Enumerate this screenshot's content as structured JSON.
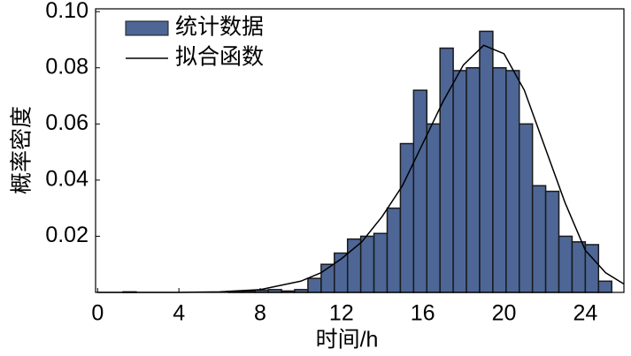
{
  "chart_data": {
    "type": "histogram",
    "x_label": "时间/h",
    "y_label": "概率密度",
    "bins": [
      0.6,
      1.25,
      1.9,
      2.55,
      3.2,
      3.85,
      4.5,
      5.15,
      5.8,
      6.45,
      7.1,
      7.75,
      8.4,
      9.05,
      9.7,
      10.35,
      11.0,
      11.65,
      12.3,
      12.95,
      13.6,
      14.25,
      14.9,
      15.55,
      16.2,
      16.85,
      17.5,
      18.15,
      18.8,
      19.45,
      20.1,
      20.75,
      21.4,
      22.05,
      22.7,
      23.35,
      24.0,
      24.65,
      25.3
    ],
    "series": [
      {
        "name": "统计数据",
        "type": "histogram",
        "color": "#4d6696",
        "values": [
          0,
          0.0002,
          0,
          0,
          0,
          0,
          0,
          0,
          0,
          0.0002,
          0.0005,
          0.0008,
          0.001,
          0.0005,
          0.001,
          0.005,
          0.01,
          0.014,
          0.019,
          0.02,
          0.021,
          0.03,
          0.053,
          0.072,
          0.06,
          0.087,
          0.079,
          0.08,
          0.093,
          0.08,
          0.079,
          0.06,
          0.038,
          0.036,
          0.02,
          0.018,
          0.017,
          0.004
        ]
      },
      {
        "name": "拟合函数",
        "type": "line",
        "color": "#000000",
        "x": [
          0,
          2,
          4,
          6,
          8,
          10,
          11,
          12,
          13,
          14,
          15,
          16,
          17,
          18,
          19,
          20,
          21,
          22,
          23,
          24,
          25,
          25.9
        ],
        "values": [
          0,
          0,
          0,
          0.0002,
          0.001,
          0.004,
          0.007,
          0.012,
          0.018,
          0.027,
          0.038,
          0.053,
          0.068,
          0.081,
          0.088,
          0.085,
          0.072,
          0.052,
          0.032,
          0.015,
          0.007,
          0.003
        ]
      }
    ],
    "xlim": [
      -0.1,
      25.9
    ],
    "xticks": [
      0,
      4,
      8,
      12,
      16,
      20,
      24
    ],
    "ylim": [
      0,
      0.101
    ],
    "yticks": [
      0.02,
      0.04,
      0.06,
      0.08,
      {
        "value": 0.1,
        "label": "0.10"
      }
    ],
    "legend": "upper-left"
  }
}
